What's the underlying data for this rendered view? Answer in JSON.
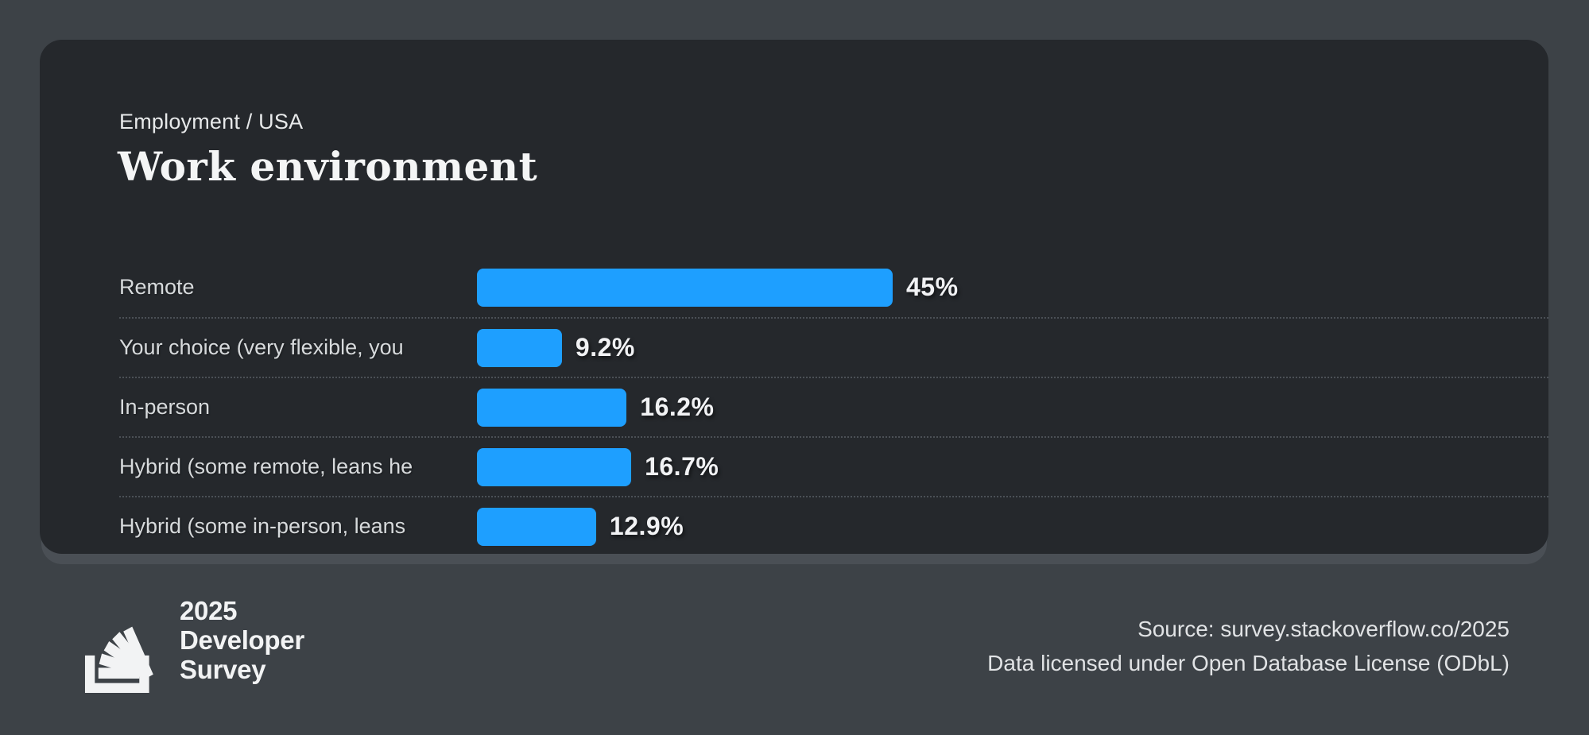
{
  "header": {
    "eyebrow": "Employment / USA",
    "title": "Work environment"
  },
  "chart_data": {
    "type": "bar",
    "orientation": "horizontal",
    "title": "Work environment",
    "subtitle": "Employment / USA",
    "categories": [
      "Remote",
      "Your choice (very flexible, you",
      "In-person",
      "Hybrid (some remote, leans he",
      "Hybrid (some in-person, leans"
    ],
    "values": [
      45,
      9.2,
      16.2,
      16.7,
      12.9
    ],
    "value_labels": [
      "45%",
      "9.2%",
      "16.2%",
      "16.7%",
      "12.9%"
    ],
    "max_value": 45,
    "bar_color": "#1e9fff",
    "grid": false,
    "legend": false
  },
  "footer": {
    "logo_icon": "stackoverflow-logo",
    "logo_lines": [
      "2025",
      "Developer",
      "Survey"
    ],
    "source_line1": "Source: survey.stackoverflow.co/2025",
    "source_line2": "Data licensed under Open Database License (ODbL)"
  },
  "colors": {
    "page_bg": "#3d4247",
    "card_bg": "#25282c",
    "card_shadow": "#4a4f55",
    "bar": "#1e9fff",
    "title_text": "#f4f5f5",
    "label_text": "#d7dadc",
    "value_text": "#f1f2f4",
    "divider": "#4b5056"
  }
}
